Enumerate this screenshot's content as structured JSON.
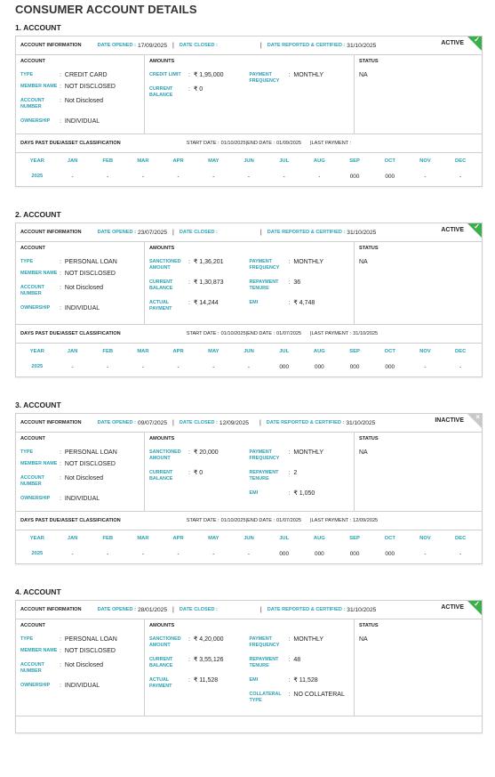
{
  "page_title": "CONSUMER ACCOUNT DETAILS",
  "labels": {
    "account_information": "ACCOUNT INFORMATION",
    "date_opened": "DATE OPENED :",
    "date_closed": "DATE CLOSED :",
    "date_reported": "DATE REPORTED & CERTIFIED :",
    "account": "ACCOUNT",
    "amounts": "AMOUNTS",
    "status": "STATUS",
    "type": "TYPE",
    "member_name": "MEMBER NAME",
    "account_number": "ACCOUNT NUMBER",
    "ownership": "OWNERSHIP",
    "dpd": "DAYS PAST DUE/ASSET CLASSIFICATION",
    "start_date": "START DATE :",
    "end_date": "END DATE :",
    "last_payment": "LAST PAYMENT :",
    "year": "YEAR",
    "colon": ":"
  },
  "months": [
    "JAN",
    "FEB",
    "MAR",
    "APR",
    "MAY",
    "JUN",
    "JUL",
    "AUG",
    "SEP",
    "OCT",
    "NOV",
    "DEC"
  ],
  "accounts": [
    {
      "heading": "1. ACCOUNT",
      "status_tag": "ACTIVE",
      "date_opened": "17/09/2025",
      "date_closed": "",
      "date_reported": "31/10/2025",
      "type": "CREDIT CARD",
      "member_name": "NOT DISCLOSED",
      "account_number": "Not Disclosed",
      "ownership": "INDIVIDUAL",
      "amounts_left": [
        {
          "label": "CREDIT LIMIT",
          "value": "₹ 1,95,000"
        },
        {
          "label": "CURRENT BALANCE",
          "value": "₹ 0"
        }
      ],
      "amounts_right": [
        {
          "label": "PAYMENT FREQUENCY",
          "value": "MONTHLY"
        }
      ],
      "status": "NA",
      "start_date": "01/10/2025",
      "end_date": "01/09/2025",
      "last_payment": "",
      "dpd_year": "2025",
      "dpd_values": [
        "-",
        "-",
        "-",
        "-",
        "-",
        "-",
        "-",
        "-",
        "000",
        "000",
        "-",
        "-"
      ]
    },
    {
      "heading": "2. ACCOUNT",
      "status_tag": "ACTIVE",
      "date_opened": "23/07/2025",
      "date_closed": "",
      "date_reported": "31/10/2025",
      "type": "PERSONAL LOAN",
      "member_name": "NOT DISCLOSED",
      "account_number": "Not Disclosed",
      "ownership": "INDIVIDUAL",
      "amounts_left": [
        {
          "label": "SANCTIONED AMOUNT",
          "value": "₹ 1,36,201"
        },
        {
          "label": "CURRENT BALANCE",
          "value": "₹ 1,30,873"
        },
        {
          "label": "ACTUAL PAYMENT",
          "value": "₹ 14,244"
        }
      ],
      "amounts_right": [
        {
          "label": "PAYMENT FREQUENCY",
          "value": "MONTHLY"
        },
        {
          "label": "REPAYMENT TENURE",
          "value": "36"
        },
        {
          "label": "EMI",
          "value": "₹ 4,748"
        }
      ],
      "status": "NA",
      "start_date": "01/10/2025",
      "end_date": "01/07/2025",
      "last_payment": "31/10/2025",
      "dpd_year": "2025",
      "dpd_values": [
        "-",
        "-",
        "-",
        "-",
        "-",
        "-",
        "000",
        "000",
        "000",
        "000",
        "-",
        "-"
      ]
    },
    {
      "heading": "3. ACCOUNT",
      "status_tag": "INACTIVE",
      "date_opened": "09/07/2025",
      "date_closed": "12/09/2025",
      "date_reported": "31/10/2025",
      "type": "PERSONAL LOAN",
      "member_name": "NOT DISCLOSED",
      "account_number": "Not Disclosed",
      "ownership": "INDIVIDUAL",
      "amounts_left": [
        {
          "label": "SANCTIONED AMOUNT",
          "value": "₹ 20,000"
        },
        {
          "label": "CURRENT BALANCE",
          "value": "₹ 0"
        }
      ],
      "amounts_right": [
        {
          "label": "PAYMENT FREQUENCY",
          "value": "MONTHLY"
        },
        {
          "label": "REPAYMENT TENURE",
          "value": "2"
        },
        {
          "label": "EMI",
          "value": "₹ 1,050"
        }
      ],
      "status": "NA",
      "start_date": "01/10/2025",
      "end_date": "01/07/2025",
      "last_payment": "12/09/2025",
      "dpd_year": "2025",
      "dpd_values": [
        "-",
        "-",
        "-",
        "-",
        "-",
        "-",
        "000",
        "000",
        "000",
        "000",
        "-",
        "-"
      ]
    },
    {
      "heading": "4. ACCOUNT",
      "status_tag": "ACTIVE",
      "date_opened": "28/01/2025",
      "date_closed": "",
      "date_reported": "31/10/2025",
      "type": "PERSONAL LOAN",
      "member_name": "NOT DISCLOSED",
      "account_number": "Not Disclosed",
      "ownership": "INDIVIDUAL",
      "amounts_left": [
        {
          "label": "SANCTIONED AMOUNT",
          "value": "₹ 4,20,000"
        },
        {
          "label": "CURRENT BALANCE",
          "value": "₹ 3,55,126"
        },
        {
          "label": "ACTUAL PAYMENT",
          "value": "₹ 11,528"
        }
      ],
      "amounts_right": [
        {
          "label": "PAYMENT FREQUENCY",
          "value": "MONTHLY"
        },
        {
          "label": "REPAYMENT TENURE",
          "value": "48"
        },
        {
          "label": "EMI",
          "value": "₹ 11,528"
        },
        {
          "label": "COLLATERAL TYPE",
          "value": "NO COLLATERAL"
        }
      ],
      "status": "NA",
      "start_date": null,
      "end_date": null,
      "last_payment": null,
      "dpd_year": null,
      "dpd_values": null
    }
  ]
}
